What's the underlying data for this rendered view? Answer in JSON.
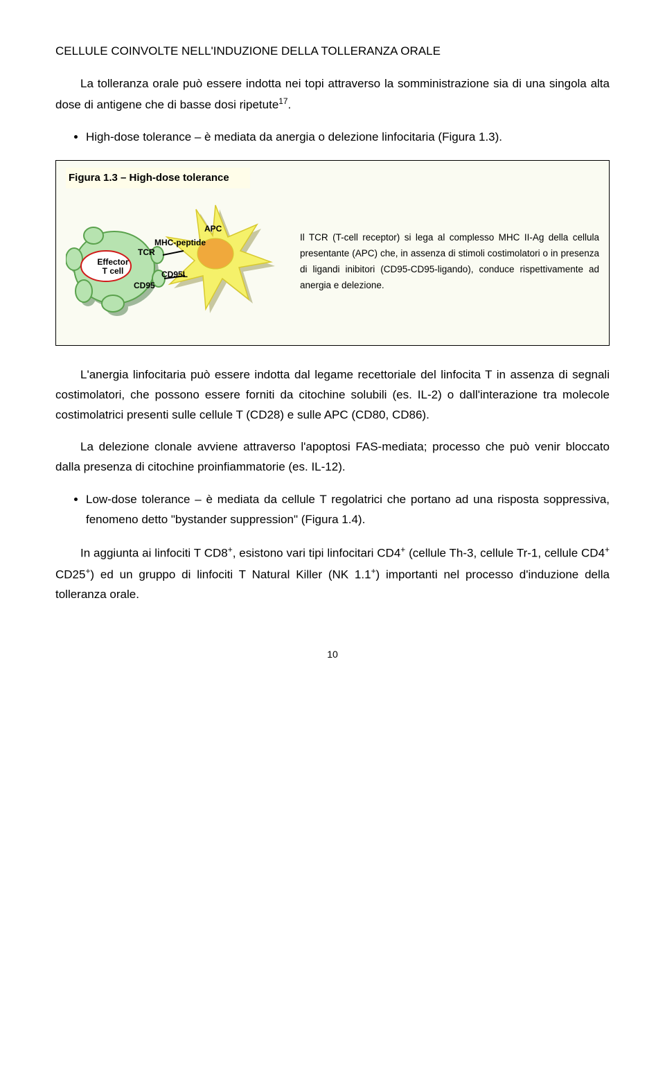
{
  "heading": "CELLULE COINVOLTE NELL'INDUZIONE DELLA TOLLERANZA ORALE",
  "intro": "La tolleranza orale può essere indotta nei topi attraverso la somministrazione sia di una singola alta dose di antigene che di basse dosi ripetute",
  "intro_sup": "17",
  "intro_tail": ".",
  "bullet1": "High-dose tolerance – è mediata da anergia o delezione linfocitaria (Figura 1.3).",
  "figure": {
    "title": "Figura 1.3 – High-dose tolerance",
    "caption": "Il TCR (T-cell receptor) si lega al complesso MHC II-Ag della cellula presentante (APC) che, in assenza di stimoli costimolatori o in presenza di ligandi inibitori (CD95-CD95-ligando), conduce rispettivamente ad anergia e delezione.",
    "labels": {
      "effector": "Effector\nT cell",
      "tcr": "TCR",
      "mhc": "MHC-peptide",
      "cd95": "CD95",
      "cd95l": "CD95L",
      "apc": "APC"
    },
    "colors": {
      "tcell_fill": "#b7e3b0",
      "tcell_stroke": "#5aa24d",
      "tcell_shadow": "#9fb89b",
      "effector_fill": "#ffffff",
      "effector_stroke": "#d11a1a",
      "apc_fill": "#f5f16a",
      "apc_stroke": "#d7c92e",
      "apc_shadow": "#c7c7a0",
      "apc_center": "#f0a93c",
      "bg": "#fafbf2"
    }
  },
  "para1": "L'anergia linfocitaria può essere indotta dal legame recettoriale del linfocita T in assenza di segnali costimolatori, che possono essere forniti da citochine solubili (es. IL-2) o dall'interazione tra molecole costimolatrici presenti sulle cellule T (CD28) e sulle APC (CD80, CD86).",
  "para2": "La delezione clonale avviene attraverso l'apoptosi FAS-mediata; processo che può venir bloccato dalla presenza di citochine proinfiammatorie (es. IL-12).",
  "bullet2": "Low-dose tolerance – è mediata da cellule T regolatrici che portano ad una risposta soppressiva, fenomeno detto \"bystander suppression\" (Figura 1.4).",
  "para3_a": "In aggiunta ai linfociti T CD8",
  "para3_b": ", esistono vari tipi linfocitari CD4",
  "para3_c": " (cellule Th-3, cellule Tr-1, cellule CD4",
  "para3_d": " CD25",
  "para3_e": ") ed un gruppo di linfociti T Natural Killer (NK 1.1",
  "para3_f": ") importanti nel processo d'induzione della tolleranza orale.",
  "plus": "+",
  "pagenum": "10"
}
